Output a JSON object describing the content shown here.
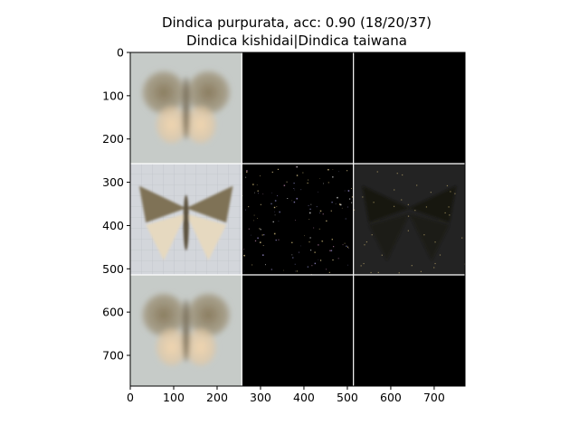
{
  "chart_data": {
    "type": "image-grid",
    "title": "Dindica purpurata, acc: 0.90 (18/20/37)",
    "subtitle": "Dindica kishidai|Dindica taiwana",
    "xlim": [
      0,
      771
    ],
    "ylim": [
      771,
      0
    ],
    "x_ticks": [
      0,
      100,
      200,
      300,
      400,
      500,
      600,
      700
    ],
    "y_ticks": [
      0,
      100,
      200,
      300,
      400,
      500,
      600,
      700
    ],
    "grid_rows": 3,
    "grid_cols": 3,
    "cell_size": 257,
    "tiles": [
      {
        "row": 0,
        "col": 0,
        "content": "moth-blurred"
      },
      {
        "row": 0,
        "col": 1,
        "content": "black"
      },
      {
        "row": 0,
        "col": 2,
        "content": "black"
      },
      {
        "row": 1,
        "col": 0,
        "content": "moth-specimen"
      },
      {
        "row": 1,
        "col": 1,
        "content": "sparse-noise"
      },
      {
        "row": 1,
        "col": 2,
        "content": "moth-dark"
      },
      {
        "row": 2,
        "col": 0,
        "content": "moth-blurred"
      },
      {
        "row": 2,
        "col": 1,
        "content": "black"
      },
      {
        "row": 2,
        "col": 2,
        "content": "black"
      }
    ],
    "colors": {
      "axis": "#000000",
      "separator": "#ffffff",
      "background": "#ffffff"
    }
  }
}
